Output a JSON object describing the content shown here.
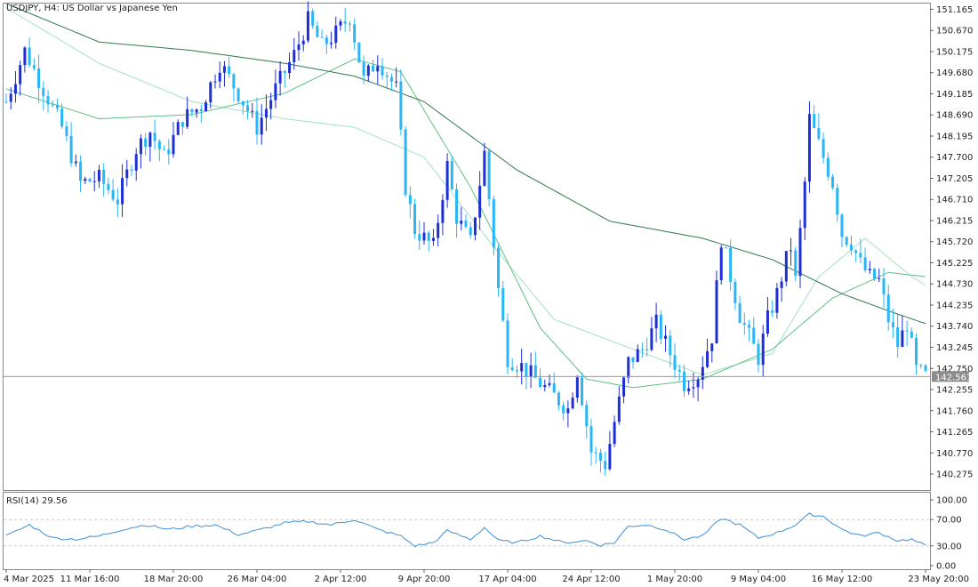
{
  "header": {
    "symbol_label": "USDJPY, H4:  US Dollar vs Japanese Yen"
  },
  "price_axis": {
    "ticks": [
      "151.165",
      "150.670",
      "150.175",
      "149.680",
      "149.185",
      "148.690",
      "148.195",
      "147.700",
      "147.205",
      "146.710",
      "146.215",
      "145.720",
      "145.225",
      "144.730",
      "144.235",
      "143.740",
      "143.245",
      "142.750",
      "142.255",
      "141.760",
      "141.265",
      "140.770",
      "140.275"
    ],
    "current_price": "142.561",
    "current_price_value": 142.561
  },
  "rsi_panel": {
    "label": "RSI(14) 29.56",
    "ticks": [
      "100.00",
      "70.00",
      "30.00",
      "0.00"
    ]
  },
  "time_axis": {
    "labels": [
      "4 Mar 2025",
      "11 Mar 16:00",
      "18 Mar 20:00",
      "26 Mar 04:00",
      "2 Apr 12:00",
      "9 Apr 20:00",
      "17 Apr 04:00",
      "24 Apr 12:00",
      "1 May 20:00",
      "9 May 04:00",
      "16 May 12:00",
      "23 May 20:00"
    ]
  },
  "colors": {
    "bull_candle": "#1e2fd6",
    "bear_candle": "#29b6f6",
    "ma_fast": "#a5e0c0",
    "ma_mid": "#5fbf86",
    "ma_slow": "#2f7a4c",
    "rsi_line": "#3c8fd9",
    "grid": "#c8c8c8",
    "axis_text": "#222222"
  },
  "chart_data": {
    "type": "candlestick",
    "symbol": "USDJPY",
    "timeframe": "H4",
    "price_range": [
      139.9,
      151.3
    ],
    "close_path": [
      [
        0,
        149.0
      ],
      [
        4,
        150.2
      ],
      [
        8,
        149.3
      ],
      [
        12,
        148.4
      ],
      [
        16,
        147.1
      ],
      [
        20,
        147.2
      ],
      [
        24,
        146.7
      ],
      [
        28,
        147.9
      ],
      [
        31,
        148.3
      ],
      [
        34,
        147.7
      ],
      [
        38,
        148.6
      ],
      [
        42,
        148.9
      ],
      [
        46,
        149.9
      ],
      [
        50,
        149.2
      ],
      [
        54,
        148.4
      ],
      [
        58,
        149.3
      ],
      [
        62,
        150.1
      ],
      [
        65,
        150.9
      ],
      [
        68,
        150.3
      ],
      [
        71,
        150.6
      ],
      [
        74,
        151.0
      ],
      [
        77,
        149.5
      ],
      [
        80,
        150.0
      ],
      [
        84,
        149.3
      ],
      [
        86,
        147.0
      ],
      [
        88,
        146.0
      ],
      [
        92,
        145.6
      ],
      [
        95,
        147.5
      ],
      [
        97,
        146.3
      ],
      [
        100,
        145.7
      ],
      [
        103,
        147.8
      ],
      [
        106,
        144.6
      ],
      [
        108,
        143.0
      ],
      [
        111,
        142.8
      ],
      [
        114,
        142.5
      ],
      [
        118,
        142.1
      ],
      [
        121,
        141.8
      ],
      [
        123,
        142.7
      ],
      [
        126,
        140.8
      ],
      [
        129,
        140.5
      ],
      [
        131,
        141.5
      ],
      [
        134,
        142.9
      ],
      [
        137,
        143.2
      ],
      [
        140,
        143.8
      ],
      [
        143,
        143.1
      ],
      [
        146,
        142.4
      ],
      [
        149,
        142.6
      ],
      [
        152,
        143.5
      ],
      [
        154,
        145.8
      ],
      [
        156,
        144.9
      ],
      [
        158,
        144.0
      ],
      [
        160,
        143.5
      ],
      [
        162,
        143.0
      ],
      [
        164,
        143.9
      ],
      [
        166,
        144.5
      ],
      [
        168,
        145.3
      ],
      [
        169,
        145.6
      ],
      [
        170,
        144.8
      ],
      [
        172,
        147.1
      ],
      [
        173,
        148.6
      ],
      [
        175,
        148.0
      ],
      [
        178,
        147.1
      ],
      [
        180,
        145.9
      ],
      [
        182,
        145.7
      ],
      [
        184,
        145.2
      ],
      [
        186,
        144.9
      ],
      [
        188,
        144.8
      ],
      [
        190,
        143.9
      ],
      [
        192,
        143.3
      ],
      [
        194,
        143.8
      ],
      [
        196,
        142.7
      ],
      [
        198,
        142.56
      ]
    ],
    "moving_averages": [
      {
        "path": [
          [
            0,
            151.2
          ],
          [
            20,
            149.9
          ],
          [
            40,
            149.0
          ],
          [
            60,
            148.6
          ],
          [
            75,
            148.4
          ],
          [
            90,
            147.7
          ],
          [
            105,
            145.6
          ],
          [
            118,
            143.9
          ],
          [
            135,
            143.2
          ],
          [
            150,
            142.6
          ],
          [
            165,
            143.1
          ],
          [
            175,
            144.9
          ],
          [
            185,
            145.8
          ],
          [
            195,
            144.9
          ],
          [
            198,
            144.7
          ]
        ]
      },
      {
        "path": [
          [
            0,
            149.3
          ],
          [
            20,
            148.6
          ],
          [
            40,
            148.7
          ],
          [
            60,
            149.2
          ],
          [
            75,
            150.0
          ],
          [
            85,
            149.7
          ],
          [
            100,
            147.0
          ],
          [
            115,
            143.7
          ],
          [
            125,
            142.5
          ],
          [
            135,
            142.3
          ],
          [
            150,
            142.5
          ],
          [
            165,
            143.2
          ],
          [
            178,
            144.4
          ],
          [
            190,
            145.0
          ],
          [
            198,
            144.9
          ]
        ]
      },
      {
        "path": [
          [
            0,
            151.3
          ],
          [
            20,
            150.4
          ],
          [
            40,
            150.2
          ],
          [
            60,
            149.9
          ],
          [
            75,
            149.6
          ],
          [
            90,
            149.0
          ],
          [
            110,
            147.4
          ],
          [
            130,
            146.2
          ],
          [
            150,
            145.8
          ],
          [
            165,
            145.3
          ],
          [
            180,
            144.5
          ],
          [
            190,
            144.1
          ],
          [
            198,
            143.8
          ]
        ]
      }
    ],
    "rsi": {
      "period": 14,
      "value": 29.56,
      "range": [
        0,
        100
      ],
      "levels": [
        70,
        30
      ],
      "path": [
        [
          0,
          45
        ],
        [
          5,
          62
        ],
        [
          10,
          42
        ],
        [
          15,
          40
        ],
        [
          20,
          45
        ],
        [
          25,
          55
        ],
        [
          30,
          62
        ],
        [
          35,
          55
        ],
        [
          40,
          60
        ],
        [
          45,
          62
        ],
        [
          50,
          47
        ],
        [
          55,
          55
        ],
        [
          60,
          65
        ],
        [
          65,
          67
        ],
        [
          70,
          62
        ],
        [
          75,
          70
        ],
        [
          80,
          55
        ],
        [
          85,
          45
        ],
        [
          88,
          30
        ],
        [
          92,
          35
        ],
        [
          95,
          53
        ],
        [
          100,
          40
        ],
        [
          103,
          58
        ],
        [
          106,
          38
        ],
        [
          110,
          35
        ],
        [
          115,
          45
        ],
        [
          120,
          35
        ],
        [
          125,
          38
        ],
        [
          128,
          31
        ],
        [
          131,
          35
        ],
        [
          134,
          60
        ],
        [
          138,
          62
        ],
        [
          142,
          55
        ],
        [
          146,
          40
        ],
        [
          150,
          45
        ],
        [
          154,
          72
        ],
        [
          158,
          62
        ],
        [
          162,
          42
        ],
        [
          166,
          50
        ],
        [
          170,
          62
        ],
        [
          173,
          78
        ],
        [
          176,
          75
        ],
        [
          180,
          55
        ],
        [
          184,
          45
        ],
        [
          188,
          50
        ],
        [
          192,
          38
        ],
        [
          195,
          40
        ],
        [
          198,
          30
        ]
      ]
    },
    "time_labels": [
      "4 Mar 2025",
      "11 Mar 16:00",
      "18 Mar 20:00",
      "26 Mar 04:00",
      "2 Apr 12:00",
      "9 Apr 20:00",
      "17 Apr 04:00",
      "24 Apr 12:00",
      "1 May 20:00",
      "9 May 04:00",
      "16 May 12:00",
      "23 May 20:00"
    ]
  }
}
